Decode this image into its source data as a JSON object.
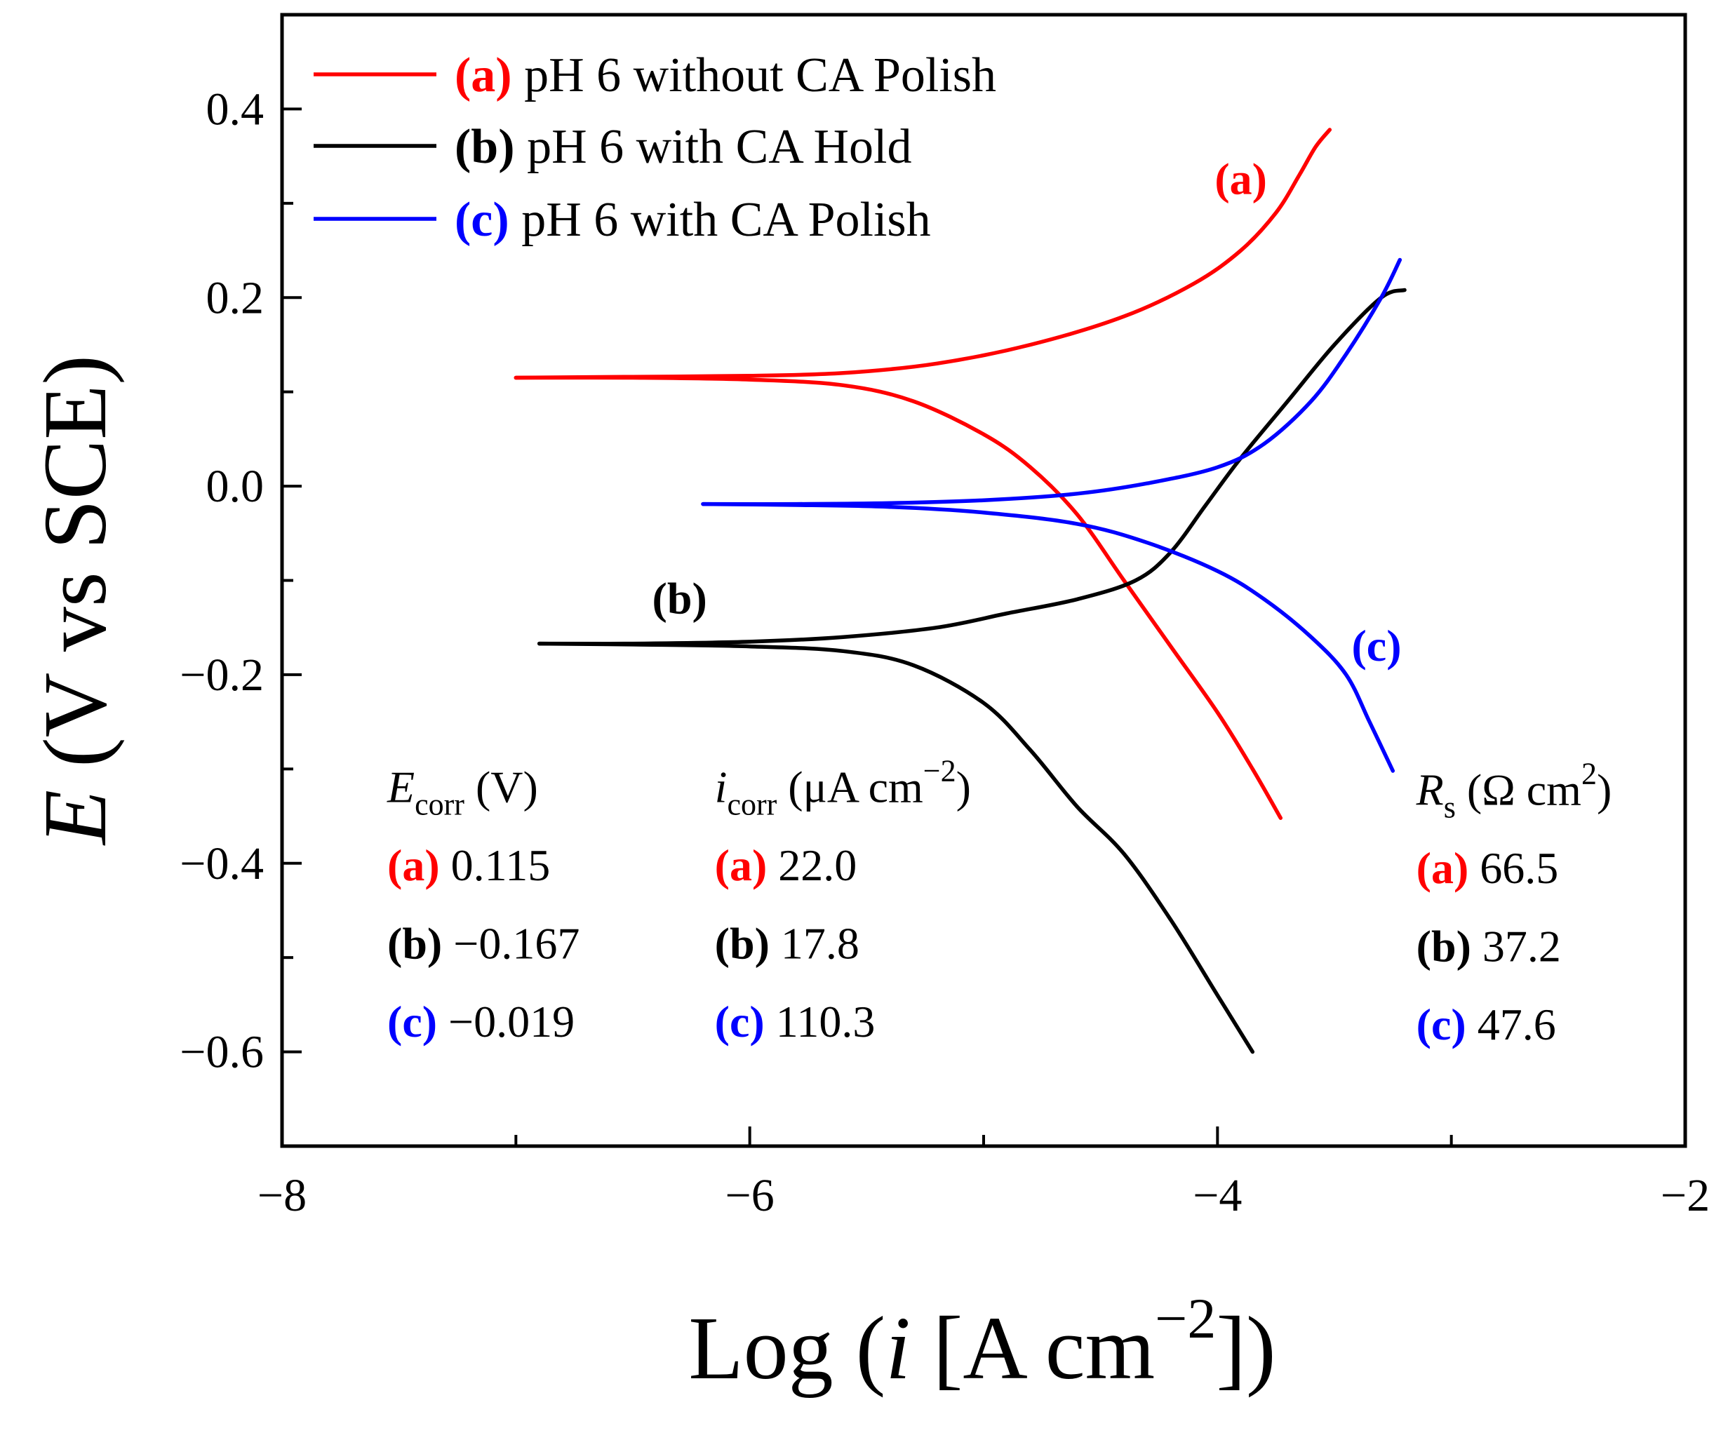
{
  "chart_data": {
    "type": "line",
    "title": "",
    "xlabel": "Log (i [A cm−2])",
    "xlabel_parts": {
      "prefix": "Log (",
      "italic": "i",
      "mid": " [A cm",
      "sup": "−2",
      "suffix": "])"
    },
    "ylabel": "E (V vs SCE)",
    "ylabel_parts": {
      "italic": "E",
      "rest": " (V vs SCE)"
    },
    "xlim": [
      -8,
      -2
    ],
    "ylim": [
      -0.7,
      0.5
    ],
    "xticks": [
      {
        "value": -8,
        "label": "−8"
      },
      {
        "value": -6,
        "label": "−6"
      },
      {
        "value": -4,
        "label": "−4"
      },
      {
        "value": -2,
        "label": "−2"
      }
    ],
    "xminor": [
      -7,
      -5,
      -3
    ],
    "yticks": [
      {
        "value": 0.4,
        "label": "0.4"
      },
      {
        "value": 0.2,
        "label": "0.2"
      },
      {
        "value": 0.0,
        "label": "0.0"
      },
      {
        "value": -0.2,
        "label": "−0.2"
      },
      {
        "value": -0.4,
        "label": "−0.4"
      },
      {
        "value": -0.6,
        "label": "−0.6"
      }
    ],
    "yminor": [
      0.3,
      0.1,
      -0.1,
      -0.3,
      -0.5
    ],
    "grid": false,
    "legend_position": "top-left",
    "series": [
      {
        "id": "a",
        "tag": "(a)",
        "name": "pH 6 without CA Polish",
        "color": "#ff0000",
        "label_point": [
          -3.9,
          0.31
        ],
        "anodic": [
          [
            -7.0,
            0.115
          ],
          [
            -6.5,
            0.116
          ],
          [
            -6.0,
            0.117
          ],
          [
            -5.6,
            0.12
          ],
          [
            -5.2,
            0.13
          ],
          [
            -4.8,
            0.15
          ],
          [
            -4.4,
            0.18
          ],
          [
            -4.1,
            0.215
          ],
          [
            -3.9,
            0.25
          ],
          [
            -3.75,
            0.29
          ],
          [
            -3.65,
            0.33
          ],
          [
            -3.58,
            0.36
          ],
          [
            -3.52,
            0.378
          ]
        ],
        "cathodic": [
          [
            -7.0,
            0.115
          ],
          [
            -6.5,
            0.115
          ],
          [
            -6.0,
            0.113
          ],
          [
            -5.6,
            0.107
          ],
          [
            -5.3,
            0.09
          ],
          [
            -5.0,
            0.055
          ],
          [
            -4.8,
            0.02
          ],
          [
            -4.6,
            -0.03
          ],
          [
            -4.4,
            -0.1
          ],
          [
            -4.2,
            -0.17
          ],
          [
            -4.0,
            -0.24
          ],
          [
            -3.85,
            -0.3
          ],
          [
            -3.73,
            -0.352
          ]
        ]
      },
      {
        "id": "b",
        "tag": "(b)",
        "name": "pH 6 with CA Hold",
        "color": "#000000",
        "label_point": [
          -6.3,
          -0.135
        ],
        "anodic": [
          [
            -6.9,
            -0.167
          ],
          [
            -6.5,
            -0.167
          ],
          [
            -6.0,
            -0.165
          ],
          [
            -5.6,
            -0.16
          ],
          [
            -5.2,
            -0.15
          ],
          [
            -4.9,
            -0.135
          ],
          [
            -4.6,
            -0.12
          ],
          [
            -4.35,
            -0.1
          ],
          [
            -4.2,
            -0.07
          ],
          [
            -4.05,
            -0.02
          ],
          [
            -3.9,
            0.03
          ],
          [
            -3.7,
            0.09
          ],
          [
            -3.5,
            0.15
          ],
          [
            -3.3,
            0.2
          ],
          [
            -3.2,
            0.208
          ]
        ],
        "cathodic": [
          [
            -6.9,
            -0.167
          ],
          [
            -6.5,
            -0.168
          ],
          [
            -6.0,
            -0.17
          ],
          [
            -5.6,
            -0.175
          ],
          [
            -5.3,
            -0.19
          ],
          [
            -5.0,
            -0.23
          ],
          [
            -4.8,
            -0.28
          ],
          [
            -4.6,
            -0.34
          ],
          [
            -4.4,
            -0.39
          ],
          [
            -4.2,
            -0.46
          ],
          [
            -4.0,
            -0.54
          ],
          [
            -3.85,
            -0.6
          ]
        ]
      },
      {
        "id": "c",
        "tag": "(c)",
        "name": "pH 6 with CA Polish",
        "color": "#0000ff",
        "label_point": [
          -3.32,
          -0.185
        ],
        "anodic": [
          [
            -6.2,
            -0.019
          ],
          [
            -5.8,
            -0.019
          ],
          [
            -5.4,
            -0.018
          ],
          [
            -5.0,
            -0.015
          ],
          [
            -4.6,
            -0.008
          ],
          [
            -4.3,
            0.003
          ],
          [
            -4.0,
            0.02
          ],
          [
            -3.8,
            0.045
          ],
          [
            -3.6,
            0.09
          ],
          [
            -3.45,
            0.14
          ],
          [
            -3.3,
            0.2
          ],
          [
            -3.22,
            0.24
          ]
        ],
        "cathodic": [
          [
            -6.2,
            -0.019
          ],
          [
            -5.8,
            -0.02
          ],
          [
            -5.4,
            -0.022
          ],
          [
            -5.0,
            -0.028
          ],
          [
            -4.6,
            -0.04
          ],
          [
            -4.3,
            -0.06
          ],
          [
            -4.0,
            -0.09
          ],
          [
            -3.8,
            -0.12
          ],
          [
            -3.6,
            -0.16
          ],
          [
            -3.45,
            -0.2
          ],
          [
            -3.35,
            -0.25
          ],
          [
            -3.25,
            -0.302
          ]
        ]
      }
    ],
    "table": {
      "columns": [
        {
          "id": "ecorr",
          "header_sym": "E",
          "header_sub": "corr",
          "header_rest": " (V)",
          "anchor": [
            -7.55,
            -0.335
          ],
          "row_gap": 0.083,
          "rows": [
            {
              "tag": "(a)",
              "value": "0.115",
              "color": "#ff0000"
            },
            {
              "tag": "(b)",
              "value": "−0.167",
              "color": "#000000"
            },
            {
              "tag": "(c)",
              "value": "−0.019",
              "color": "#0000ff"
            }
          ]
        },
        {
          "id": "icorr",
          "header_sym": "i",
          "header_sub": "corr",
          "header_rest": " (μA cm",
          "header_sup": "−2",
          "header_end": ")",
          "anchor": [
            -6.15,
            -0.335
          ],
          "row_gap": 0.083,
          "rows": [
            {
              "tag": "(a)",
              "value": "22.0",
              "color": "#ff0000"
            },
            {
              "tag": "(b)",
              "value": "17.8",
              "color": "#000000"
            },
            {
              "tag": "(c)",
              "value": "110.3",
              "color": "#0000ff"
            }
          ]
        },
        {
          "id": "rs",
          "header_sym": "R",
          "header_sub": "s",
          "header_rest": " (Ω cm",
          "header_sup": "2",
          "header_end": ")",
          "anchor": [
            -3.15,
            -0.338
          ],
          "row_gap": 0.083,
          "rows": [
            {
              "tag": "(a)",
              "value": "66.5",
              "color": "#ff0000"
            },
            {
              "tag": "(b)",
              "value": "37.2",
              "color": "#000000"
            },
            {
              "tag": "(c)",
              "value": "47.6",
              "color": "#0000ff"
            }
          ]
        }
      ]
    }
  }
}
